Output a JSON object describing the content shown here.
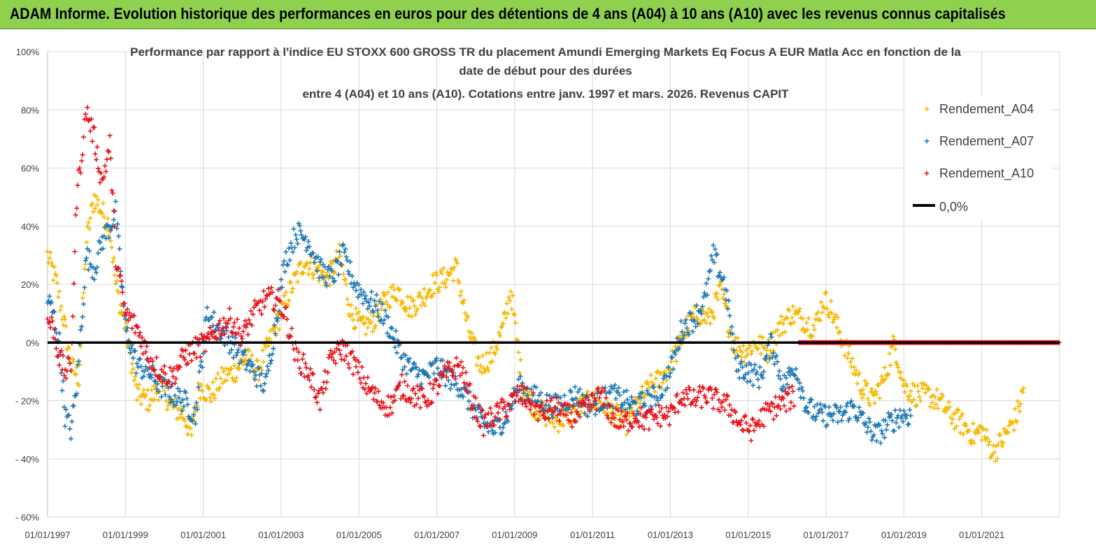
{
  "banner": {
    "title": "ADAM Informe. Evolution historique des performances en euros pour des détentions de 4 ans (A04) à 10 ans (A10) avec les revenus connus capitalisés"
  },
  "colors": {
    "a04": "#f5b800",
    "a07": "#1f78b4",
    "a10": "#e8141b",
    "zero": "#000000",
    "banner": "#8fd14f"
  },
  "chart_data": {
    "type": "scatter",
    "title_lines": [
      "Performance par rapport à l'indice EU STOXX 600 GROSS TR  du placement Amundi Emerging Markets Eq Focus A EUR Matla Acc en fonction de la",
      "date de début pour des durées",
      "entre 4 (A04) et 10 ans (A10). Cotations entre janv. 1997 et mars. 2026. Revenus CAPIT"
    ],
    "x_range": [
      1997.0,
      2023.0
    ],
    "ylim": [
      -60,
      100
    ],
    "y_ticks": [
      100,
      80,
      60,
      40,
      20,
      0,
      -20,
      -40,
      -60
    ],
    "y_tick_labels": [
      "100%",
      "80%",
      "60%",
      "40%",
      "20%",
      "0%",
      "- 20%",
      "- 40%",
      "- 60%"
    ],
    "x_ticks": [
      1997,
      1999,
      2001,
      2003,
      2005,
      2007,
      2009,
      2011,
      2013,
      2015,
      2017,
      2019,
      2021
    ],
    "x_tick_labels": [
      "01/01/1997",
      "01/01/1999",
      "01/01/2001",
      "01/01/2003",
      "01/01/2005",
      "01/01/2007",
      "01/01/2009",
      "01/01/2011",
      "01/01/2013",
      "01/01/2015",
      "01/01/2017",
      "01/01/2019",
      "01/01/2021"
    ],
    "legend": [
      "Rendement_A04",
      "Rendement_A07",
      "Rendement_A10",
      "0,0%"
    ],
    "legend_position": "top-right",
    "series": [
      {
        "name": "Rendement_A04",
        "color": "#f5b800",
        "x": [
          1997.0,
          1997.2,
          1997.45,
          1997.6,
          1997.8,
          1998.0,
          1998.2,
          1998.4,
          1998.6,
          1998.75,
          1999.0,
          1999.3,
          1999.6,
          1999.9,
          2000.2,
          2000.5,
          2000.7,
          2000.9,
          2001.2,
          2001.5,
          2001.8,
          2002.1,
          2002.4,
          2002.7,
          2003.0,
          2003.3,
          2003.6,
          2003.9,
          2004.2,
          2004.5,
          2004.8,
          2005.1,
          2005.4,
          2005.7,
          2006.0,
          2006.3,
          2006.6,
          2006.9,
          2007.2,
          2007.5,
          2007.8,
          2008.1,
          2008.4,
          2008.7,
          2008.9,
          2009.2,
          2009.5,
          2009.8,
          2010.1,
          2010.4,
          2010.7,
          2011.0,
          2011.3,
          2011.6,
          2011.9,
          2012.2,
          2012.5,
          2012.8,
          2013.1,
          2013.4,
          2013.7,
          2014.0,
          2014.3,
          2014.6,
          2014.9,
          2015.2,
          2015.5,
          2015.8,
          2016.1,
          2016.4,
          2016.7,
          2016.95,
          2017.1,
          2017.3,
          2017.6,
          2017.9,
          2018.2,
          2018.5,
          2018.75,
          2019.0,
          2019.3,
          2019.6,
          2019.9,
          2020.2,
          2020.5,
          2020.8,
          2021.0,
          2021.3,
          2021.6,
          2021.9,
          2022.1
        ],
        "y": [
          30,
          22,
          5,
          -8,
          -12,
          35,
          50,
          45,
          40,
          20,
          5,
          -18,
          -20,
          -15,
          -22,
          -25,
          -32,
          -15,
          -18,
          -12,
          -10,
          -5,
          -10,
          0,
          10,
          20,
          28,
          25,
          22,
          30,
          10,
          5,
          8,
          15,
          18,
          12,
          15,
          20,
          22,
          26,
          5,
          -8,
          -5,
          5,
          18,
          -15,
          -22,
          -25,
          -27,
          -25,
          -22,
          -20,
          -22,
          -25,
          -28,
          -20,
          -15,
          -12,
          -5,
          5,
          10,
          8,
          18,
          0,
          -3,
          0,
          -3,
          5,
          10,
          8,
          5,
          15,
          12,
          5,
          -5,
          -15,
          -20,
          -12,
          0,
          -15,
          -18,
          -18,
          -20,
          -25,
          -28,
          -32,
          -30,
          -38,
          -32,
          -25,
          -15
        ]
      },
      {
        "name": "Rendement_A07",
        "color": "#1f78b4",
        "x": [
          1997.0,
          1997.15,
          1997.3,
          1997.45,
          1997.6,
          1997.75,
          1998.0,
          1998.2,
          1998.4,
          1998.6,
          1998.75,
          1999.0,
          1999.3,
          1999.6,
          1999.9,
          2000.2,
          2000.5,
          2000.8,
          2001.1,
          2001.4,
          2001.7,
          2002.0,
          2002.3,
          2002.6,
          2002.9,
          2003.1,
          2003.4,
          2003.7,
          2004.0,
          2004.3,
          2004.6,
          2004.9,
          2005.2,
          2005.5,
          2005.8,
          2006.1,
          2006.4,
          2006.7,
          2007.0,
          2007.3,
          2007.6,
          2007.9,
          2008.2,
          2008.5,
          2008.8,
          2009.1,
          2009.4,
          2009.7,
          2010.0,
          2010.3,
          2010.6,
          2010.9,
          2011.2,
          2011.5,
          2011.8,
          2012.1,
          2012.4,
          2012.7,
          2013.0,
          2013.3,
          2013.6,
          2013.9,
          2014.1,
          2014.4,
          2014.7,
          2015.0,
          2015.3,
          2015.6,
          2015.9,
          2016.2,
          2016.5,
          2016.8,
          2017.1,
          2017.4,
          2017.7,
          2018.0,
          2018.3,
          2018.6,
          2018.9,
          2019.2
        ],
        "y": [
          15,
          10,
          0,
          -25,
          -30,
          -15,
          30,
          25,
          35,
          40,
          45,
          5,
          -8,
          -10,
          -15,
          -18,
          -20,
          -25,
          10,
          5,
          0,
          -5,
          -10,
          -15,
          10,
          28,
          38,
          35,
          25,
          22,
          30,
          20,
          15,
          12,
          5,
          -5,
          -10,
          -12,
          -8,
          -12,
          -15,
          -22,
          -28,
          -30,
          -25,
          -15,
          -18,
          -20,
          -22,
          -20,
          -18,
          -22,
          -20,
          -18,
          -20,
          -22,
          -20,
          -18,
          -10,
          5,
          8,
          15,
          30,
          20,
          -8,
          -10,
          -12,
          0,
          -15,
          -8,
          -22,
          -25,
          -25,
          -25,
          -22,
          -28,
          -32,
          -28,
          -25,
          -25
        ]
      },
      {
        "name": "Rendement_A10",
        "color": "#e8141b",
        "x": [
          1997.0,
          1997.15,
          1997.3,
          1997.45,
          1997.6,
          1997.75,
          1998.0,
          1998.2,
          1998.4,
          1998.6,
          1998.75,
          1999.0,
          1999.3,
          1999.6,
          1999.9,
          2000.2,
          2000.5,
          2000.8,
          2001.1,
          2001.4,
          2001.7,
          2002.0,
          2002.3,
          2002.6,
          2002.9,
          2003.1,
          2003.4,
          2003.7,
          2004.0,
          2004.3,
          2004.6,
          2004.9,
          2005.2,
          2005.5,
          2005.8,
          2006.1,
          2006.4,
          2006.7,
          2007.0,
          2007.3,
          2007.6,
          2007.9,
          2008.2,
          2008.5,
          2008.8,
          2009.1,
          2009.4,
          2009.7,
          2010.0,
          2010.3,
          2010.6,
          2010.9,
          2011.2,
          2011.5,
          2011.8,
          2012.1,
          2012.4,
          2012.7,
          2013.0,
          2013.3,
          2013.6,
          2013.9,
          2014.2,
          2014.5,
          2014.8,
          2015.1,
          2015.4,
          2015.7,
          2016.0,
          2016.2
        ],
        "y": [
          8,
          5,
          -5,
          -10,
          -8,
          50,
          80,
          70,
          55,
          68,
          30,
          10,
          5,
          -5,
          -10,
          -12,
          -5,
          -2,
          0,
          5,
          8,
          2,
          10,
          15,
          15,
          10,
          -5,
          -10,
          -20,
          -5,
          -2,
          -8,
          -15,
          -20,
          -22,
          -15,
          -18,
          -20,
          -15,
          -10,
          -8,
          -20,
          -28,
          -25,
          -22,
          -18,
          -20,
          -25,
          -22,
          -25,
          -25,
          -22,
          -18,
          -25,
          -28,
          -25,
          -27,
          -25,
          -25,
          -18,
          -20,
          -18,
          -20,
          -22,
          -28,
          -30,
          -25,
          -22,
          -20,
          -18
        ]
      }
    ],
    "zero_line": {
      "name": "0,0%",
      "y": 0
    },
    "zero_points": {
      "name": "Rendement_A10",
      "from": 2016.3,
      "to": 2023.0,
      "y": 0
    }
  }
}
